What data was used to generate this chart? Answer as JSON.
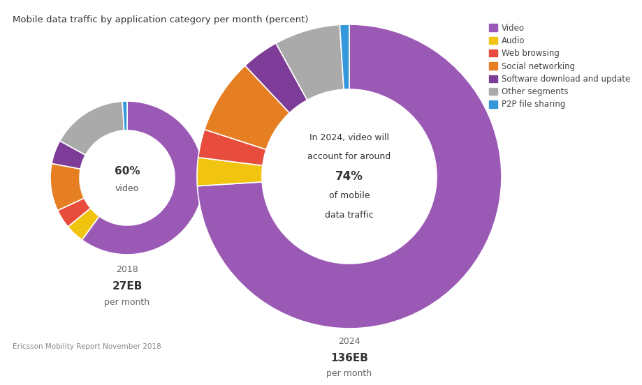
{
  "title": "Mobile data traffic by application category per month (percent)",
  "source": "Ericsson Mobility Report November 2018",
  "categories": [
    "Video",
    "Audio",
    "Web browsing",
    "Social networking",
    "Software download and update",
    "Other segments",
    "P2P file sharing"
  ],
  "colors": [
    "#9b59b6",
    "#f1c40f",
    "#e74c3c",
    "#e67e22",
    "#7d3c98",
    "#aaaaaa",
    "#3498db"
  ],
  "values_2018": [
    60,
    4,
    4,
    10,
    5,
    16,
    1
  ],
  "values_2024": [
    74,
    3,
    3,
    8,
    4,
    7,
    1
  ],
  "year_2018": "2018",
  "year_2024": "2024",
  "label_2018": "27EB",
  "label_2024": "136EB",
  "sublabel": "per month",
  "center_text_2018_pct": "60%",
  "center_text_2018_word": "video",
  "center_text_2024_line1": "In 2024, video will",
  "center_text_2024_line2": "account for around",
  "center_text_2024_line3": "74%",
  "center_text_2024_line4": "of mobile",
  "center_text_2024_line5": "data traffic",
  "bg_color": "#ffffff"
}
